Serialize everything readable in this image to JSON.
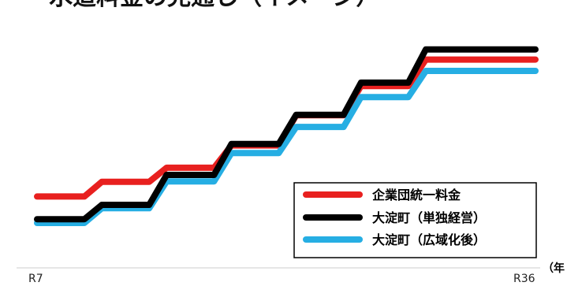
{
  "chart_data": {
    "type": "line",
    "title": "水道料金の見通し（イメージ）",
    "x_start_label": "R7",
    "x_end_label": "R36",
    "x_unit": "（年",
    "colors": {
      "red": "#e8201f",
      "black": "#000000",
      "blue": "#26aee3"
    },
    "series": [
      {
        "name": "企業団統一料金",
        "color": "red",
        "points": [
          [
            0,
            1.3
          ],
          [
            0.095,
            1.3
          ],
          [
            0.13,
            1.69
          ],
          [
            0.225,
            1.69
          ],
          [
            0.26,
            2.06
          ],
          [
            0.355,
            2.06
          ],
          [
            0.39,
            2.65
          ],
          [
            0.485,
            2.65
          ],
          [
            0.52,
            3.45
          ],
          [
            0.615,
            3.45
          ],
          [
            0.65,
            4.22
          ],
          [
            0.745,
            4.22
          ],
          [
            0.78,
            4.92
          ],
          [
            1.0,
            4.92
          ]
        ]
      },
      {
        "name": "大淀町（単独経営）",
        "color": "black",
        "points": [
          [
            0,
            0.7
          ],
          [
            0.095,
            0.7
          ],
          [
            0.13,
            1.08
          ],
          [
            0.225,
            1.08
          ],
          [
            0.26,
            1.87
          ],
          [
            0.355,
            1.87
          ],
          [
            0.39,
            2.69
          ],
          [
            0.485,
            2.69
          ],
          [
            0.52,
            3.46
          ],
          [
            0.615,
            3.46
          ],
          [
            0.65,
            4.31
          ],
          [
            0.745,
            4.31
          ],
          [
            0.78,
            5.19
          ],
          [
            1.0,
            5.19
          ]
        ]
      },
      {
        "name": "大淀町（広域化後）",
        "color": "blue",
        "points": [
          [
            0,
            0.6
          ],
          [
            0.095,
            0.6
          ],
          [
            0.13,
            0.99
          ],
          [
            0.225,
            0.99
          ],
          [
            0.26,
            1.7
          ],
          [
            0.355,
            1.7
          ],
          [
            0.39,
            2.45
          ],
          [
            0.485,
            2.45
          ],
          [
            0.52,
            3.14
          ],
          [
            0.615,
            3.14
          ],
          [
            0.65,
            3.93
          ],
          [
            0.745,
            3.93
          ],
          [
            0.78,
            4.62
          ],
          [
            1.0,
            4.62
          ]
        ]
      }
    ],
    "grid": false,
    "legend": "bottom-right"
  }
}
